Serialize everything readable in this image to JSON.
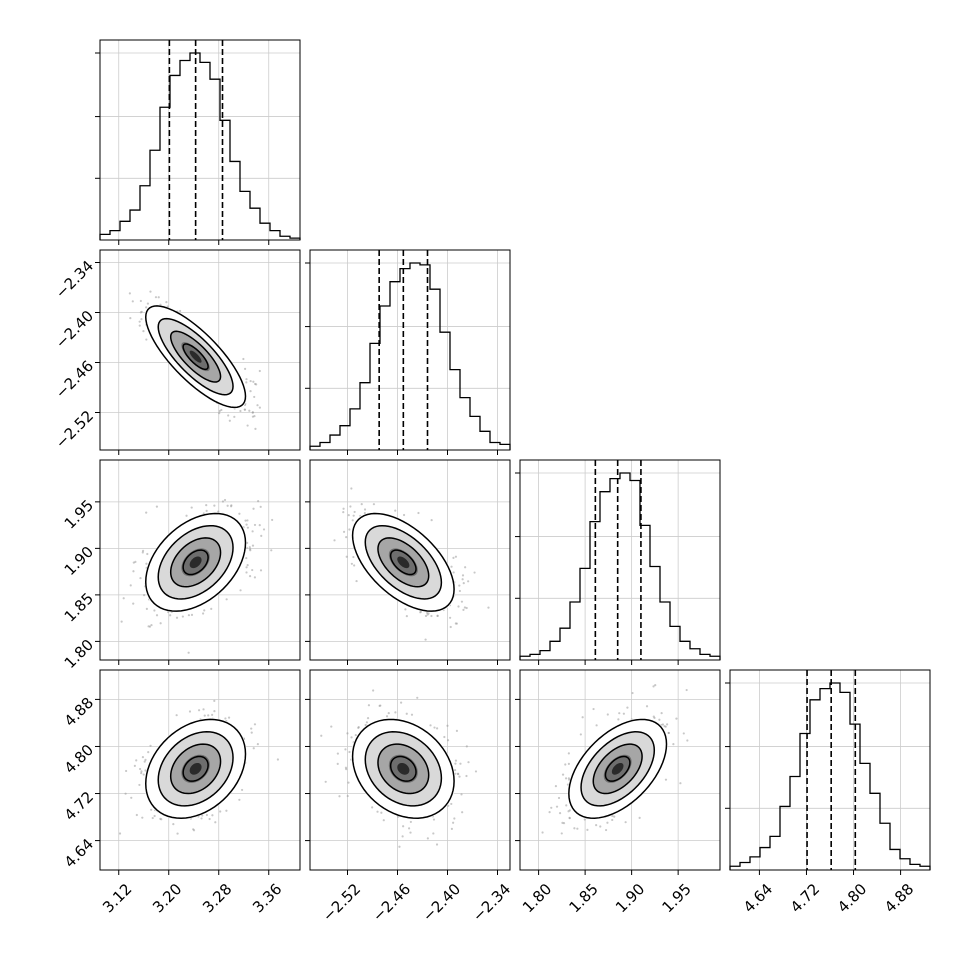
{
  "chart_data": {
    "type": "corner",
    "parameters": [
      {
        "ticks": [
          3.12,
          3.2,
          3.28,
          3.36
        ],
        "tick_labels": [
          "3.12",
          "3.20",
          "3.28",
          "3.36"
        ],
        "range": [
          3.09,
          3.41
        ],
        "quantiles": [
          3.201,
          3.243,
          3.286
        ],
        "hist_values": [
          0.03,
          0.05,
          0.1,
          0.16,
          0.29,
          0.48,
          0.71,
          0.88,
          0.96,
          1.0,
          0.95,
          0.86,
          0.64,
          0.42,
          0.26,
          0.17,
          0.09,
          0.05,
          0.02,
          0.01
        ]
      },
      {
        "ticks": [
          -2.52,
          -2.46,
          -2.4,
          -2.34
        ],
        "tick_labels": [
          "−2.52",
          "−2.46",
          "−2.40",
          "−2.34"
        ],
        "range": [
          -2.565,
          -2.325
        ],
        "quantiles": [
          -2.482,
          -2.453,
          -2.424
        ],
        "hist_values": [
          0.02,
          0.04,
          0.08,
          0.13,
          0.22,
          0.36,
          0.57,
          0.77,
          0.9,
          0.97,
          1.0,
          0.99,
          0.86,
          0.63,
          0.43,
          0.28,
          0.18,
          0.1,
          0.04,
          0.03
        ]
      },
      {
        "ticks": [
          1.8,
          1.85,
          1.9,
          1.95
        ],
        "tick_labels": [
          "1.80",
          "1.85",
          "1.90",
          "1.95"
        ],
        "range": [
          1.78,
          1.995
        ],
        "quantiles": [
          1.861,
          1.885,
          1.91
        ],
        "hist_values": [
          0.02,
          0.03,
          0.05,
          0.1,
          0.17,
          0.31,
          0.49,
          0.74,
          0.9,
          0.97,
          1.0,
          0.96,
          0.72,
          0.5,
          0.31,
          0.18,
          0.1,
          0.06,
          0.03,
          0.02
        ]
      },
      {
        "ticks": [
          4.64,
          4.72,
          4.8,
          4.88
        ],
        "tick_labels": [
          "4.64",
          "4.72",
          "4.80",
          "4.88"
        ],
        "range": [
          4.59,
          4.93
        ],
        "quantiles": [
          4.721,
          4.762,
          4.803
        ],
        "hist_values": [
          0.02,
          0.04,
          0.07,
          0.12,
          0.18,
          0.34,
          0.5,
          0.73,
          0.91,
          0.97,
          1.0,
          0.95,
          0.78,
          0.57,
          0.41,
          0.25,
          0.11,
          0.06,
          0.03,
          0.02
        ]
      }
    ],
    "correlations": [
      {
        "row": 1,
        "col": 0,
        "mean": [
          3.243,
          -2.453
        ],
        "sd": [
          0.038,
          0.029
        ],
        "rho": -0.78
      },
      {
        "row": 2,
        "col": 0,
        "mean": [
          3.243,
          1.885
        ],
        "sd": [
          0.038,
          0.025
        ],
        "rho": 0.4
      },
      {
        "row": 2,
        "col": 1,
        "mean": [
          -2.453,
          1.885
        ],
        "sd": [
          0.029,
          0.025
        ],
        "rho": -0.55
      },
      {
        "row": 3,
        "col": 0,
        "mean": [
          3.243,
          4.762
        ],
        "sd": [
          0.038,
          0.04
        ],
        "rho": 0.3
      },
      {
        "row": 3,
        "col": 1,
        "mean": [
          -2.453,
          4.762
        ],
        "sd": [
          0.029,
          0.04
        ],
        "rho": -0.25
      },
      {
        "row": 3,
        "col": 2,
        "mean": [
          1.885,
          4.762
        ],
        "sd": [
          0.025,
          0.04
        ],
        "rho": 0.5
      }
    ],
    "contour_levels_sigma": [
      0.5,
      1.0,
      1.5,
      2.0
    ],
    "grid": true,
    "title": "",
    "legend": ""
  }
}
